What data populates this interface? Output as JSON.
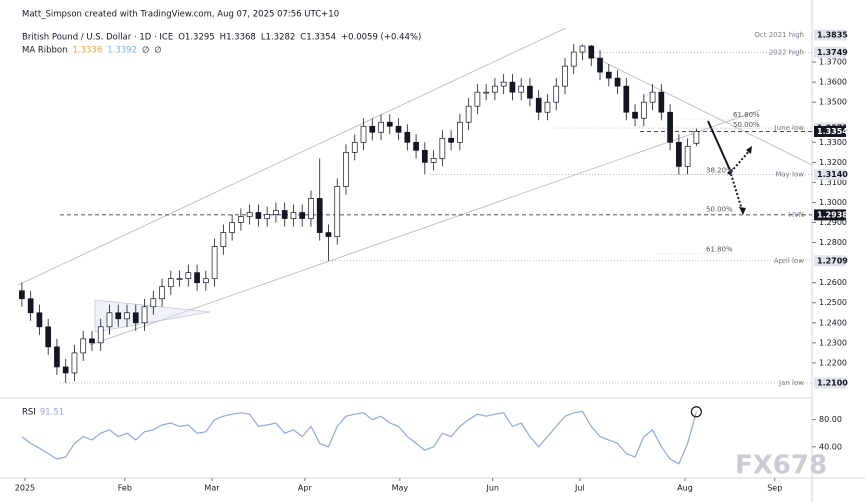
{
  "header": {
    "credit": "Matt_Simpson created with TradingView.com, Aug 07, 2025 07:56 UTC+10",
    "watermark": "FX678"
  },
  "chart_data": [
    {
      "type": "candlestick",
      "legend": {
        "symbol": "British Pound / U.S. Dollar · 1D · ICE",
        "open": "O1.3295",
        "high": "H1.3368",
        "low": "L1.3282",
        "close": "C1.3354",
        "change": "+0.0059 (+0.44%)"
      },
      "indicator": {
        "name": "MA Ribbon",
        "values": [
          "1.3336",
          "1.3392",
          "∅",
          "∅"
        ],
        "colors": [
          "#f0a040",
          "#7eb0e8",
          "#131722",
          "#131722"
        ]
      },
      "x": [
        0,
        2,
        4,
        6,
        8,
        10,
        12,
        14,
        16,
        18,
        20,
        22,
        24,
        26,
        28,
        30,
        32,
        34,
        36,
        38,
        40,
        42,
        44,
        46,
        48,
        50,
        52,
        54,
        56,
        58,
        60,
        62,
        64,
        66,
        68,
        70,
        72,
        74,
        76,
        78,
        80,
        82,
        84,
        86,
        88,
        90,
        92,
        94,
        96,
        98,
        100,
        102,
        104,
        106,
        108,
        110,
        112,
        114,
        116,
        118,
        120,
        122,
        124,
        126,
        128,
        130,
        132,
        134,
        136,
        138,
        140,
        142,
        144,
        146,
        148,
        150,
        152,
        154
      ],
      "open": [
        1.256,
        1.252,
        1.245,
        1.238,
        1.228,
        1.218,
        1.215,
        1.225,
        1.232,
        1.23,
        1.238,
        1.245,
        1.242,
        1.245,
        1.24,
        1.248,
        1.252,
        1.258,
        1.262,
        1.262,
        1.265,
        1.26,
        1.262,
        1.278,
        1.285,
        1.29,
        1.293,
        1.295,
        1.292,
        1.294,
        1.296,
        1.292,
        1.295,
        1.292,
        1.302,
        1.285,
        1.283,
        1.308,
        1.325,
        1.33,
        1.338,
        1.335,
        1.34,
        1.338,
        1.335,
        1.33,
        1.326,
        1.32,
        1.322,
        1.332,
        1.33,
        1.34,
        1.348,
        1.355,
        1.355,
        1.358,
        1.36,
        1.355,
        1.358,
        1.352,
        1.345,
        1.35,
        1.358,
        1.368,
        1.375,
        1.378,
        1.372,
        1.365,
        1.362,
        1.358,
        1.345,
        1.342,
        1.35,
        1.355,
        1.345,
        1.33,
        1.318,
        1.3295
      ],
      "high": [
        1.26,
        1.256,
        1.249,
        1.242,
        1.232,
        1.222,
        1.229,
        1.236,
        1.236,
        1.242,
        1.249,
        1.249,
        1.249,
        1.249,
        1.252,
        1.256,
        1.262,
        1.266,
        1.266,
        1.269,
        1.269,
        1.266,
        1.282,
        1.289,
        1.294,
        1.297,
        1.299,
        1.299,
        1.298,
        1.3,
        1.3,
        1.299,
        1.299,
        1.306,
        1.322,
        1.289,
        1.312,
        1.329,
        1.334,
        1.342,
        1.342,
        1.344,
        1.344,
        1.342,
        1.339,
        1.334,
        1.33,
        1.326,
        1.336,
        1.336,
        1.344,
        1.352,
        1.359,
        1.359,
        1.362,
        1.364,
        1.364,
        1.362,
        1.362,
        1.356,
        1.354,
        1.362,
        1.372,
        1.379,
        1.3788,
        1.3785,
        1.376,
        1.369,
        1.366,
        1.362,
        1.349,
        1.354,
        1.359,
        1.359,
        1.349,
        1.334,
        1.332,
        1.3368
      ],
      "low": [
        1.248,
        1.241,
        1.234,
        1.224,
        1.214,
        1.21,
        1.211,
        1.221,
        1.226,
        1.226,
        1.234,
        1.238,
        1.238,
        1.236,
        1.236,
        1.244,
        1.248,
        1.254,
        1.258,
        1.258,
        1.256,
        1.256,
        1.258,
        1.274,
        1.281,
        1.286,
        1.289,
        1.288,
        1.288,
        1.29,
        1.288,
        1.288,
        1.288,
        1.288,
        1.281,
        1.2709,
        1.279,
        1.304,
        1.321,
        1.326,
        1.331,
        1.331,
        1.334,
        1.331,
        1.326,
        1.322,
        1.314,
        1.316,
        1.318,
        1.326,
        1.326,
        1.336,
        1.344,
        1.351,
        1.351,
        1.354,
        1.351,
        1.351,
        1.348,
        1.341,
        1.341,
        1.346,
        1.354,
        1.364,
        1.371,
        1.368,
        1.361,
        1.358,
        1.354,
        1.341,
        1.338,
        1.338,
        1.346,
        1.341,
        1.326,
        1.314,
        1.314,
        1.3282
      ],
      "close": [
        1.252,
        1.245,
        1.238,
        1.228,
        1.218,
        1.215,
        1.225,
        1.232,
        1.23,
        1.238,
        1.245,
        1.242,
        1.245,
        1.24,
        1.248,
        1.252,
        1.258,
        1.262,
        1.262,
        1.265,
        1.26,
        1.262,
        1.278,
        1.285,
        1.29,
        1.293,
        1.295,
        1.292,
        1.294,
        1.296,
        1.292,
        1.295,
        1.292,
        1.302,
        1.285,
        1.283,
        1.308,
        1.325,
        1.33,
        1.338,
        1.335,
        1.34,
        1.338,
        1.335,
        1.33,
        1.326,
        1.32,
        1.322,
        1.332,
        1.33,
        1.34,
        1.348,
        1.355,
        1.355,
        1.358,
        1.36,
        1.355,
        1.358,
        1.352,
        1.345,
        1.35,
        1.358,
        1.368,
        1.375,
        1.378,
        1.372,
        1.365,
        1.362,
        1.358,
        1.345,
        1.342,
        1.35,
        1.355,
        1.345,
        1.33,
        1.318,
        1.328,
        1.3354
      ],
      "up_color": "#ffffff",
      "down_color": "#131722",
      "wick_color": "#131722",
      "xlim": [
        -5,
        180.4
      ],
      "xticks": [
        {
          "value": 0.7,
          "label": "2025"
        },
        {
          "value": 23.5,
          "label": "Feb"
        },
        {
          "value": 43.4,
          "label": "Mar"
        },
        {
          "value": 64.6,
          "label": "Apr"
        },
        {
          "value": 86.3,
          "label": "May"
        },
        {
          "value": 107.5,
          "label": "Jun"
        },
        {
          "value": 127.4,
          "label": "Jul"
        },
        {
          "value": 151.4,
          "label": "Aug"
        },
        {
          "value": 171.9,
          "label": "Sep"
        }
      ],
      "ylim": [
        1.204,
        1.387
      ],
      "yticks": [
        {
          "value": 1.22,
          "label": "1.2200"
        },
        {
          "value": 1.23,
          "label": "1.2300"
        },
        {
          "value": 1.24,
          "label": "1.2400"
        },
        {
          "value": 1.25,
          "label": "1.2500"
        },
        {
          "value": 1.26,
          "label": "1.2600"
        },
        {
          "value": 1.28,
          "label": "1.2800"
        },
        {
          "value": 1.29,
          "label": "1.2900"
        },
        {
          "value": 1.3,
          "label": "1.3000"
        },
        {
          "value": 1.31,
          "label": "1.3100"
        },
        {
          "value": 1.32,
          "label": "1.3200"
        },
        {
          "value": 1.33,
          "label": "1.3300"
        },
        {
          "value": 1.35,
          "label": "1.3500"
        },
        {
          "value": 1.36,
          "label": "1.3600"
        },
        {
          "value": 1.37,
          "label": "1.3700"
        }
      ],
      "levels": [
        {
          "value": 1.3835,
          "label": "1.3835",
          "note": "Oct 2021 high",
          "color": "#e0e3eb"
        },
        {
          "value": 1.3749,
          "label": "1.3749",
          "note": "2022 high",
          "color": "#e0e3eb"
        },
        {
          "value": 1.3371,
          "label": "1.3371",
          "note": "June low",
          "color": "#e0e3eb"
        },
        {
          "value": 1.3354,
          "label": "1.3354",
          "color": "#131722"
        },
        {
          "value": 1.314,
          "label": "1.3140",
          "note": "May low",
          "color": "#e0e3eb"
        },
        {
          "value": 1.2938,
          "label": "1.2938",
          "note": "HVN",
          "color": "#131722"
        },
        {
          "value": 1.2709,
          "label": "1.2709",
          "note": "April low",
          "color": "#e0e3eb"
        },
        {
          "value": 1.21,
          "label": "1.2100",
          "note": "Jan low",
          "color": "#e0e3eb"
        }
      ],
      "fibs": [
        {
          "price": 1.3416,
          "label": "61.80%"
        },
        {
          "price": 1.3366,
          "label": "50.00%"
        },
        {
          "price": 1.314,
          "label": "38.20%"
        },
        {
          "price": 1.2945,
          "label": "50.00%"
        },
        {
          "price": 1.2745,
          "label": "61.80%"
        }
      ]
    },
    {
      "type": "line",
      "title": "RSI",
      "value_label": "91.51",
      "color": "#8fa8dc",
      "x": [
        0,
        2,
        4,
        6,
        8,
        10,
        12,
        14,
        16,
        18,
        20,
        22,
        24,
        26,
        28,
        30,
        32,
        34,
        36,
        38,
        40,
        42,
        44,
        46,
        48,
        50,
        52,
        54,
        56,
        58,
        60,
        62,
        64,
        66,
        68,
        70,
        72,
        74,
        76,
        78,
        80,
        82,
        84,
        86,
        88,
        90,
        92,
        94,
        96,
        98,
        100,
        102,
        104,
        106,
        108,
        110,
        112,
        114,
        116,
        118,
        120,
        122,
        124,
        126,
        128,
        130,
        132,
        134,
        136,
        138,
        140,
        142,
        144,
        146,
        148,
        150,
        152,
        154
      ],
      "values": [
        55,
        45,
        38,
        30,
        22,
        25,
        45,
        55,
        50,
        60,
        65,
        55,
        60,
        50,
        62,
        65,
        72,
        75,
        70,
        72,
        60,
        62,
        80,
        85,
        88,
        90,
        88,
        70,
        72,
        75,
        60,
        65,
        55,
        70,
        45,
        40,
        70,
        85,
        88,
        90,
        80,
        85,
        75,
        70,
        55,
        45,
        35,
        40,
        60,
        55,
        70,
        80,
        88,
        85,
        88,
        90,
        70,
        75,
        55,
        40,
        55,
        70,
        85,
        90,
        92,
        70,
        55,
        50,
        45,
        30,
        25,
        55,
        65,
        40,
        22,
        15,
        45,
        91.51
      ],
      "xlim": [
        -5,
        180.4
      ],
      "ylim": [
        0,
        100
      ],
      "yticks": [
        {
          "value": 80,
          "label": "80.00"
        },
        {
          "value": 40,
          "label": "40.00"
        }
      ]
    }
  ]
}
